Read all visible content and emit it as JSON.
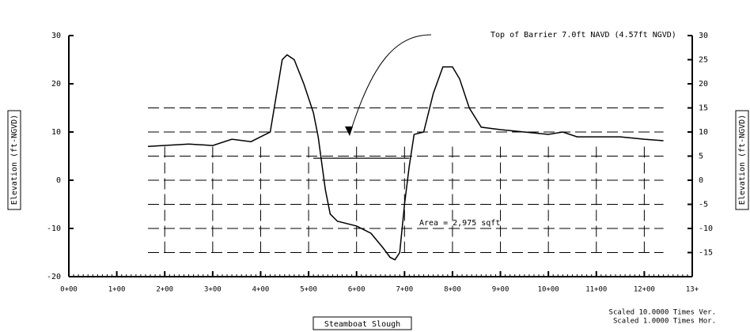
{
  "chart_data": {
    "type": "line",
    "x_label": "Steamboat Slough",
    "y_label": "Elevation (ft-NGVD)",
    "y2_label": "Elevation (ft-NGVD)",
    "annotations": [
      "Top of Barrier 7.0ft NAVD (4.57ft NGVD)",
      "Area = 2,975 sqft",
      "Scaled 10.0000 Times Ver.",
      "Scaled 1.0000 Times Hor."
    ],
    "x": [
      165,
      250,
      300,
      340,
      380,
      400,
      420,
      430,
      445,
      455,
      470,
      490,
      510,
      520,
      535,
      545,
      560,
      600,
      630,
      655,
      670,
      680,
      690,
      700,
      710,
      720,
      740,
      760,
      780,
      800,
      815,
      835,
      860,
      900,
      950,
      1000,
      1030,
      1060,
      1150,
      1200,
      1240
    ],
    "series": [
      {
        "name": "Elevation",
        "color": "#000000",
        "values": [
          7,
          7.5,
          7.2,
          8.5,
          8,
          9,
          10,
          16,
          25,
          26,
          25,
          20,
          14,
          9,
          -2,
          -7,
          -8.5,
          -9.5,
          -11,
          -14,
          -16,
          -16.5,
          -15,
          -5,
          3,
          9.5,
          10,
          18,
          23.5,
          23.5,
          21,
          15,
          11,
          10.5,
          10,
          9.5,
          10,
          9,
          9,
          8.5,
          8.2
        ]
      }
    ],
    "barrier_x": [
      510,
      710
    ],
    "barrier_elevation": 4.57,
    "xlim": [
      0,
      1300
    ],
    "xticks": [
      {
        "value": 0,
        "label": "0+00"
      },
      {
        "value": 100,
        "label": "1+00"
      },
      {
        "value": 200,
        "label": "2+00"
      },
      {
        "value": 300,
        "label": "3+00"
      },
      {
        "value": 400,
        "label": "4+00"
      },
      {
        "value": 500,
        "label": "5+00"
      },
      {
        "value": 600,
        "label": "6+00"
      },
      {
        "value": 700,
        "label": "7+00"
      },
      {
        "value": 800,
        "label": "8+00"
      },
      {
        "value": 900,
        "label": "9+00"
      },
      {
        "value": 1000,
        "label": "10+00"
      },
      {
        "value": 1100,
        "label": "11+00"
      },
      {
        "value": 1200,
        "label": "12+00"
      },
      {
        "value": 1300,
        "label": "13+"
      }
    ],
    "ylim": [
      -20,
      30
    ],
    "yticks": [
      -20,
      -10,
      0,
      10,
      20,
      30
    ],
    "y2lim": [
      -20,
      30
    ],
    "y2ticks": [
      -15,
      -10,
      -5,
      0,
      5,
      10,
      15,
      20,
      25,
      30
    ],
    "grid": true
  }
}
